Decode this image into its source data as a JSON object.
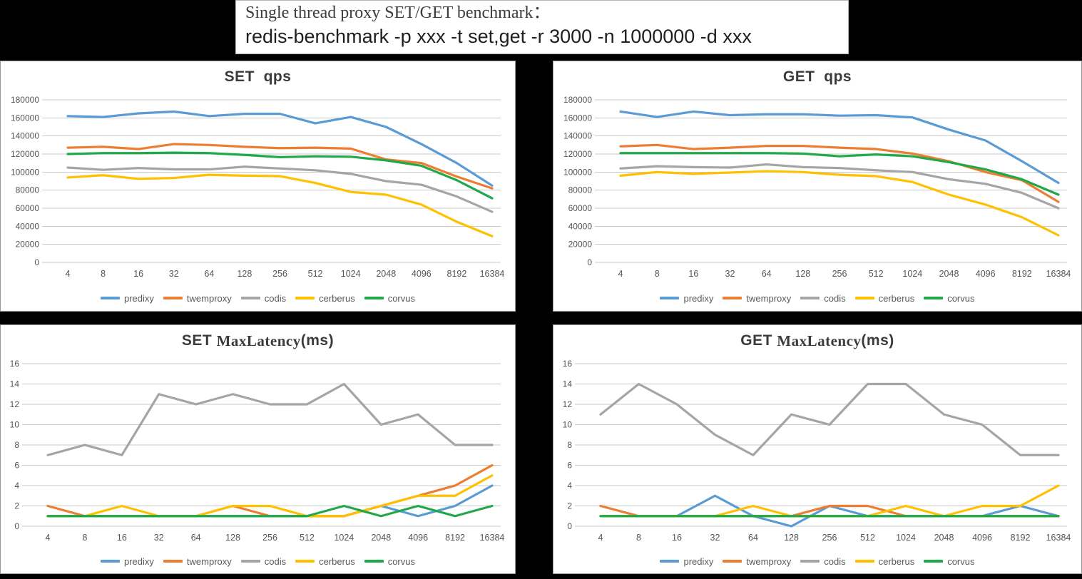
{
  "title_box": {
    "line1": "Single thread proxy SET/GET benchmark：",
    "line2": "redis-benchmark -p xxx -t set,get -r 3000 -n 1000000 -d xxx"
  },
  "legend": [
    "predixy",
    "twemproxy",
    "codis",
    "cerberus",
    "corvus"
  ],
  "colors": {
    "predixy": "#5B9BD5",
    "twemproxy": "#ED7D31",
    "codis": "#A5A5A5",
    "cerberus": "#FFC000",
    "corvus": "#21A849",
    "gridline": "#C9C9C9",
    "tick_text": "#555555",
    "legend_text": "#595959",
    "title_text": "#3B3B3B"
  },
  "categories": [
    "4",
    "8",
    "16",
    "32",
    "64",
    "128",
    "256",
    "512",
    "1024",
    "2048",
    "4096",
    "8192",
    "16384"
  ],
  "chart_data": [
    {
      "type": "line",
      "title": {
        "p1": "SET  qps",
        "p2": "",
        "p3": ""
      },
      "xlabel": "",
      "ylabel": "",
      "ylim": [
        0,
        180000
      ],
      "yticks": [
        "180000",
        "160000",
        "140000",
        "120000",
        "100000",
        "80000",
        "60000",
        "40000",
        "20000",
        "0"
      ],
      "grid": true,
      "legend_position": "bottom",
      "series": [
        {
          "name": "predixy",
          "values": [
            162000,
            161000,
            165000,
            167000,
            162000,
            164500,
            164500,
            154000,
            161000,
            150000,
            131000,
            110000,
            85000
          ]
        },
        {
          "name": "twemproxy",
          "values": [
            127000,
            128000,
            125500,
            131000,
            130000,
            128000,
            126500,
            127000,
            126000,
            114000,
            110000,
            95000,
            82000
          ]
        },
        {
          "name": "codis",
          "values": [
            105000,
            102500,
            104500,
            103000,
            103000,
            106000,
            104000,
            102000,
            98000,
            90000,
            86000,
            73000,
            56000
          ]
        },
        {
          "name": "cerberus",
          "values": [
            94000,
            96500,
            92500,
            93500,
            97000,
            96000,
            95500,
            88000,
            78000,
            75000,
            64000,
            45000,
            29000
          ]
        },
        {
          "name": "corvus",
          "values": [
            120000,
            121000,
            121000,
            121500,
            121000,
            119000,
            116500,
            117500,
            117000,
            113000,
            107000,
            91000,
            71000
          ]
        }
      ]
    },
    {
      "type": "line",
      "title": {
        "p1": "GET  qps",
        "p2": "",
        "p3": ""
      },
      "xlabel": "",
      "ylabel": "",
      "ylim": [
        0,
        180000
      ],
      "yticks": [
        "180000",
        "160000",
        "140000",
        "120000",
        "100000",
        "80000",
        "60000",
        "40000",
        "20000",
        "0"
      ],
      "grid": true,
      "legend_position": "bottom",
      "series": [
        {
          "name": "predixy",
          "values": [
            167000,
            161000,
            167000,
            163000,
            164000,
            164000,
            162500,
            163000,
            160500,
            147000,
            135000,
            112000,
            88000
          ]
        },
        {
          "name": "twemproxy",
          "values": [
            128500,
            130000,
            125500,
            127000,
            129000,
            129000,
            127000,
            125500,
            120500,
            112000,
            100000,
            91000,
            67000
          ]
        },
        {
          "name": "codis",
          "values": [
            104000,
            106500,
            105500,
            105000,
            108500,
            105500,
            104500,
            102000,
            100000,
            92000,
            87000,
            77000,
            60000
          ]
        },
        {
          "name": "cerberus",
          "values": [
            96000,
            100000,
            98000,
            99500,
            101000,
            100000,
            97000,
            95500,
            89000,
            75000,
            64000,
            50000,
            30000
          ]
        },
        {
          "name": "corvus",
          "values": [
            121000,
            121000,
            121000,
            121000,
            121000,
            120500,
            117500,
            119500,
            117500,
            111000,
            103000,
            92000,
            75000
          ]
        }
      ]
    },
    {
      "type": "line",
      "title": {
        "p1": "SET ",
        "p2": "MaxLatency",
        "p3": "(ms)"
      },
      "xlabel": "",
      "ylabel": "",
      "ylim": [
        0,
        16
      ],
      "yticks": [
        "16",
        "14",
        "12",
        "10",
        "8",
        "6",
        "4",
        "2",
        "0"
      ],
      "grid": true,
      "legend_position": "bottom",
      "series": [
        {
          "name": "predixy",
          "values": [
            1,
            1,
            1,
            1,
            1,
            1,
            1,
            1,
            1,
            2,
            1,
            2,
            4
          ]
        },
        {
          "name": "twemproxy",
          "values": [
            2,
            1,
            1,
            1,
            1,
            2,
            1,
            1,
            1,
            2,
            3,
            4,
            6
          ]
        },
        {
          "name": "codis",
          "values": [
            7,
            8,
            7,
            13,
            12,
            13,
            12,
            12,
            14,
            10,
            11,
            8,
            8
          ]
        },
        {
          "name": "cerberus",
          "values": [
            1,
            1,
            2,
            1,
            1,
            2,
            2,
            1,
            1,
            2,
            3,
            3,
            5
          ]
        },
        {
          "name": "corvus",
          "values": [
            1,
            1,
            1,
            1,
            1,
            1,
            1,
            1,
            2,
            1,
            2,
            1,
            2
          ]
        }
      ]
    },
    {
      "type": "line",
      "title": {
        "p1": "GET ",
        "p2": "MaxLatency",
        "p3": "(ms)"
      },
      "xlabel": "",
      "ylabel": "",
      "ylim": [
        0,
        16
      ],
      "yticks": [
        "16",
        "14",
        "12",
        "10",
        "8",
        "6",
        "4",
        "2",
        "0"
      ],
      "grid": true,
      "legend_position": "bottom",
      "series": [
        {
          "name": "predixy",
          "values": [
            1,
            1,
            1,
            3,
            1,
            0,
            2,
            1,
            1,
            1,
            1,
            2,
            1
          ]
        },
        {
          "name": "twemproxy",
          "values": [
            2,
            1,
            1,
            1,
            1,
            1,
            2,
            2,
            1,
            1,
            1,
            1,
            1
          ]
        },
        {
          "name": "codis",
          "values": [
            11,
            14,
            12,
            9,
            7,
            11,
            10,
            14,
            14,
            11,
            10,
            7,
            7
          ]
        },
        {
          "name": "cerberus",
          "values": [
            1,
            1,
            1,
            1,
            2,
            1,
            1,
            1,
            2,
            1,
            2,
            2,
            4
          ]
        },
        {
          "name": "corvus",
          "values": [
            1,
            1,
            1,
            1,
            1,
            1,
            1,
            1,
            1,
            1,
            1,
            1,
            1
          ]
        }
      ]
    }
  ]
}
